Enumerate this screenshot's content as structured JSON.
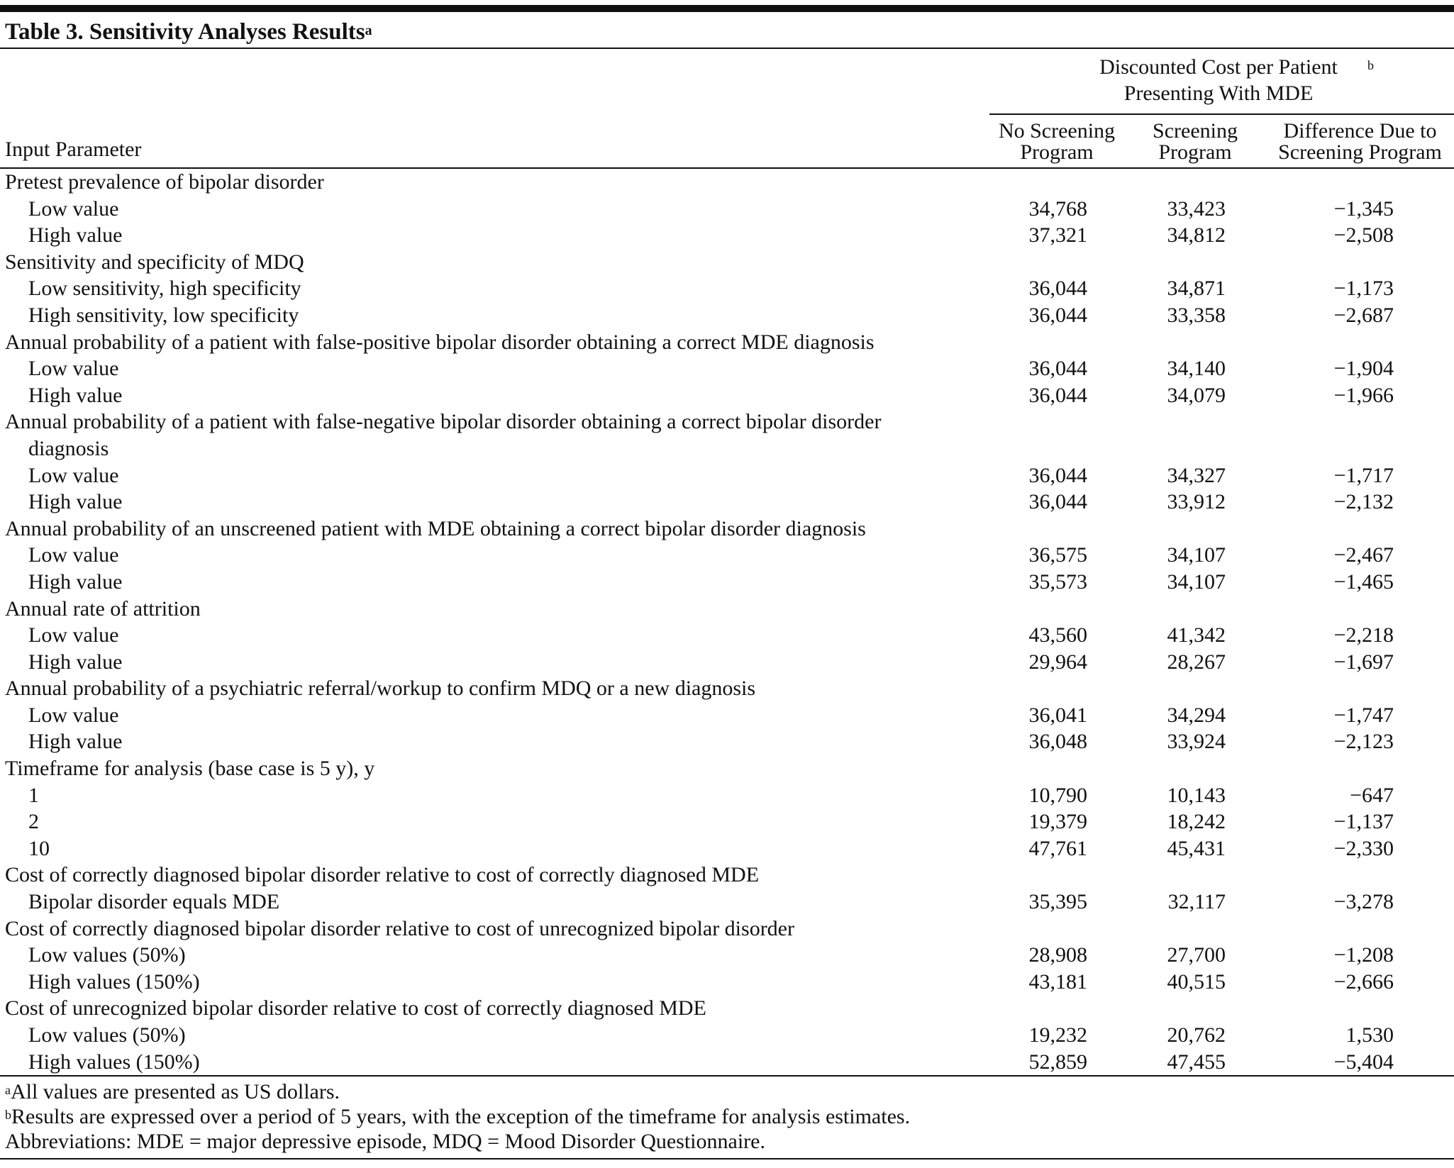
{
  "title": "Table 3. Sensitivity Analyses Results",
  "title_sup": "a",
  "header": {
    "group": "Discounted Cost per Patient Presenting With MDE",
    "group_sup": "b",
    "columns": [
      "Input Parameter",
      "No Screening Program",
      "Screening Program",
      "Difference Due to Screening Program"
    ]
  },
  "sections": [
    {
      "label": "Pretest prevalence of bipolar disorder",
      "rows": [
        [
          "Low value",
          "34,768",
          "33,423",
          "−1,345"
        ],
        [
          "High value",
          "37,321",
          "34,812",
          "−2,508"
        ]
      ]
    },
    {
      "label": "Sensitivity and specificity of MDQ",
      "rows": [
        [
          "Low sensitivity, high specificity",
          "36,044",
          "34,871",
          "−1,173"
        ],
        [
          "High sensitivity, low specificity",
          "36,044",
          "33,358",
          "−2,687"
        ]
      ]
    },
    {
      "label": "Annual probability of a patient with false-positive bipolar disorder obtaining a correct MDE diagnosis",
      "rows": [
        [
          "Low value",
          "36,044",
          "34,140",
          "−1,904"
        ],
        [
          "High value",
          "36,044",
          "34,079",
          "−1,966"
        ]
      ]
    },
    {
      "label": "Annual probability of a patient with false-negative bipolar disorder obtaining a correct bipolar disorder diagnosis",
      "rows": [
        [
          "Low value",
          "36,044",
          "34,327",
          "−1,717"
        ],
        [
          "High value",
          "36,044",
          "33,912",
          "−2,132"
        ]
      ]
    },
    {
      "label": "Annual probability of an unscreened patient with MDE obtaining a correct bipolar disorder diagnosis",
      "rows": [
        [
          "Low value",
          "36,575",
          "34,107",
          "−2,467"
        ],
        [
          "High value",
          "35,573",
          "34,107",
          "−1,465"
        ]
      ]
    },
    {
      "label": "Annual rate of attrition",
      "rows": [
        [
          "Low value",
          "43,560",
          "41,342",
          "−2,218"
        ],
        [
          "High value",
          "29,964",
          "28,267",
          "−1,697"
        ]
      ]
    },
    {
      "label": "Annual probability of a psychiatric referral/workup to confirm MDQ or a new diagnosis",
      "rows": [
        [
          "Low value",
          "36,041",
          "34,294",
          "−1,747"
        ],
        [
          "High value",
          "36,048",
          "33,924",
          "−2,123"
        ]
      ]
    },
    {
      "label": "Timeframe for analysis (base case is 5 y), y",
      "rows": [
        [
          "1",
          "10,790",
          "10,143",
          "−647"
        ],
        [
          "2",
          "19,379",
          "18,242",
          "−1,137"
        ],
        [
          "10",
          "47,761",
          "45,431",
          "−2,330"
        ]
      ]
    },
    {
      "label": "Cost of correctly diagnosed bipolar disorder relative to cost of correctly diagnosed MDE",
      "rows": [
        [
          "Bipolar disorder equals MDE",
          "35,395",
          "32,117",
          "−3,278"
        ]
      ]
    },
    {
      "label": "Cost of correctly diagnosed bipolar disorder relative to cost of unrecognized bipolar disorder",
      "rows": [
        [
          "Low values (50%)",
          "28,908",
          "27,700",
          "−1,208"
        ],
        [
          "High values (150%)",
          "43,181",
          "40,515",
          "−2,666"
        ]
      ]
    },
    {
      "label": "Cost of unrecognized bipolar disorder relative to cost of correctly diagnosed MDE",
      "rows": [
        [
          "Low values (50%)",
          "19,232",
          "20,762",
          "1,530"
        ],
        [
          "High values (150%)",
          "52,859",
          "47,455",
          "−5,404"
        ]
      ]
    }
  ],
  "footnotes": [
    {
      "sup": "a",
      "text": "All values are presented as US dollars."
    },
    {
      "sup": "b",
      "text": "Results are expressed over a period of 5 years, with the exception of the timeframe for analysis estimates."
    }
  ],
  "abbreviations": "Abbreviations: MDE = major depressive episode, MDQ = Mood Disorder Questionnaire."
}
